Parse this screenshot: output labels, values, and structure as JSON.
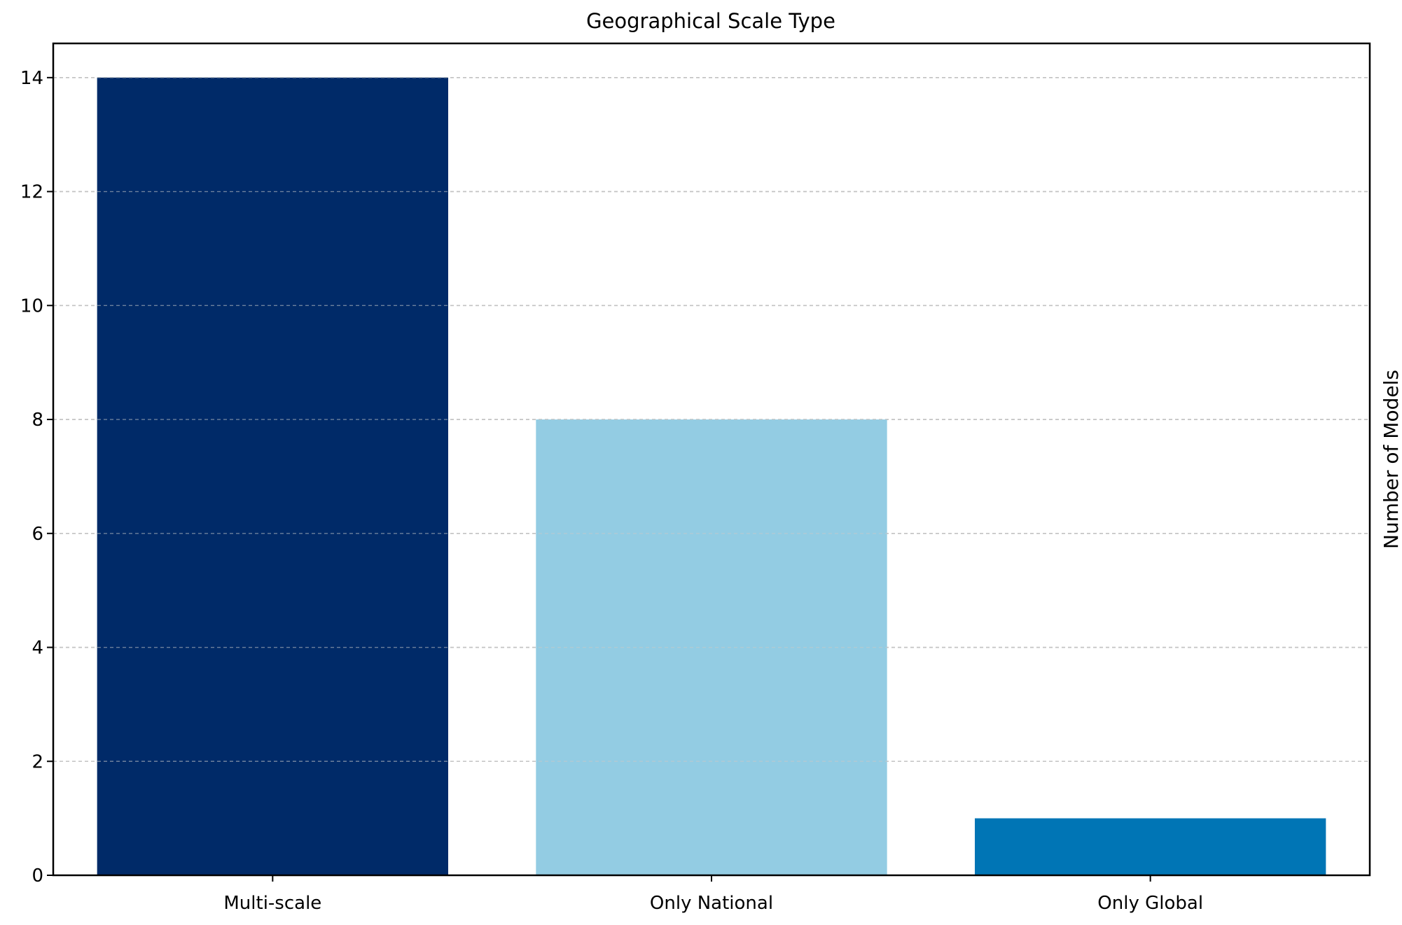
{
  "chart_data": {
    "type": "bar",
    "title": "Geographical Scale Type",
    "xlabel": "",
    "ylabel": "Number of Models",
    "categories": [
      "Multi-scale",
      "Only National",
      "Only Global"
    ],
    "values": [
      14,
      8,
      1
    ],
    "colors": [
      "#002a68",
      "#93cce3",
      "#0075b5"
    ],
    "ylim": [
      0,
      14.6
    ],
    "yticks": [
      0,
      2,
      4,
      6,
      8,
      10,
      12,
      14
    ],
    "grid": true,
    "grid_axis": "y",
    "ylabel_side": "right"
  }
}
